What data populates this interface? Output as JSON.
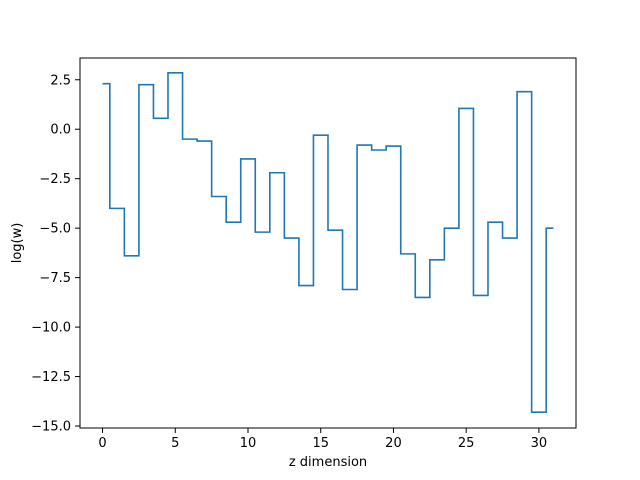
{
  "chart_data": {
    "type": "line",
    "drawstyle": "steps-mid",
    "title": "",
    "xlabel": "z dimension",
    "ylabel": "log(w)",
    "xlim": [
      -1.55,
      32.55
    ],
    "ylim": [
      -15.1,
      3.6
    ],
    "xticks": [
      0,
      5,
      10,
      15,
      20,
      25,
      30
    ],
    "yticks": [
      2.5,
      0.0,
      -2.5,
      -5.0,
      -7.5,
      -10.0,
      -12.5,
      -15.0
    ],
    "ytick_labels": [
      "2.5",
      "0.0",
      "−2.5",
      "−5.0",
      "−7.5",
      "−10.0",
      "−12.5",
      "−15.0"
    ],
    "grid": false,
    "line_color": "#1f77b4",
    "series": [
      {
        "x": [
          0,
          1,
          2,
          3,
          4,
          5,
          6,
          7,
          8,
          9,
          10,
          11,
          12,
          13,
          14,
          15,
          16,
          17,
          18,
          19,
          20,
          21,
          22,
          23,
          24,
          25,
          26,
          27,
          28,
          29,
          30,
          31
        ],
        "values": [
          2.3,
          -4.0,
          -6.4,
          2.25,
          0.55,
          2.85,
          -0.5,
          -0.6,
          -3.4,
          -4.7,
          -1.5,
          -5.2,
          -2.2,
          -5.5,
          -7.9,
          -0.3,
          -5.1,
          -8.1,
          -0.8,
          -1.05,
          -0.85,
          -6.3,
          -8.5,
          -6.6,
          -5.0,
          1.05,
          -8.4,
          -4.7,
          -5.5,
          1.9,
          -14.3,
          -5.0
        ]
      }
    ]
  }
}
